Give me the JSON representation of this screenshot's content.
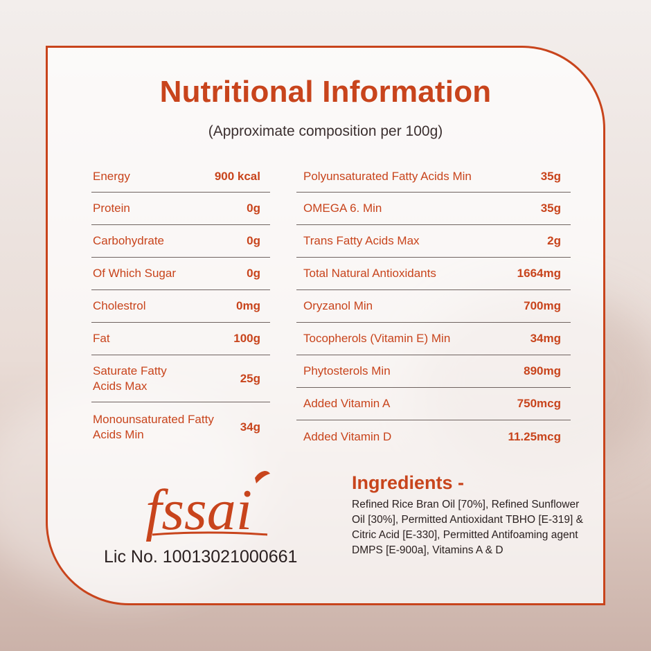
{
  "title": "Nutritional Information",
  "subtitle": "(Approximate composition per 100g)",
  "left_rows": [
    {
      "label": "Energy",
      "value": "900 kcal"
    },
    {
      "label": "Protein",
      "value": "0g"
    },
    {
      "label": "Carbohydrate",
      "value": "0g"
    },
    {
      "label": "Of Which Sugar",
      "value": "0g"
    },
    {
      "label": "Cholestrol",
      "value": "0mg"
    },
    {
      "label": "Fat",
      "value": "100g"
    },
    {
      "label": "Saturate Fatty Acids Max",
      "value": "25g"
    },
    {
      "label": "Monounsaturated Fatty Acids Min",
      "value": "34g"
    }
  ],
  "right_rows": [
    {
      "label": "Polyunsaturated Fatty Acids Min",
      "value": "35g"
    },
    {
      "label": "OMEGA 6. Min",
      "value": "35g"
    },
    {
      "label": "Trans Fatty Acids Max",
      "value": "2g"
    },
    {
      "label": "Total Natural Antioxidants",
      "value": "1664mg"
    },
    {
      "label": "Oryzanol Min",
      "value": "700mg"
    },
    {
      "label": "Tocopherols (Vitamin E) Min",
      "value": "34mg"
    },
    {
      "label": "Phytosterols Min",
      "value": "890mg"
    },
    {
      "label": "Added Vitamin A",
      "value": "750mcg"
    },
    {
      "label": "Added Vitamin D",
      "value": "11.25mcg"
    }
  ],
  "logo": {
    "text": "fssai"
  },
  "license": "Lic No. 10013021000661",
  "ingredients": {
    "title": "Ingredients -",
    "text": "Refined Rice Bran Oil [70%], Refined Sunflower Oil [30%], Permitted Antioxidant TBHO [E-319] & Citric Acid [E-330], Permitted Antifoaming agent DMPS [E-900a], Vitamins A & D"
  },
  "colors": {
    "accent": "#c8441c",
    "text": "#2a2020",
    "divider": "#6e625f"
  }
}
